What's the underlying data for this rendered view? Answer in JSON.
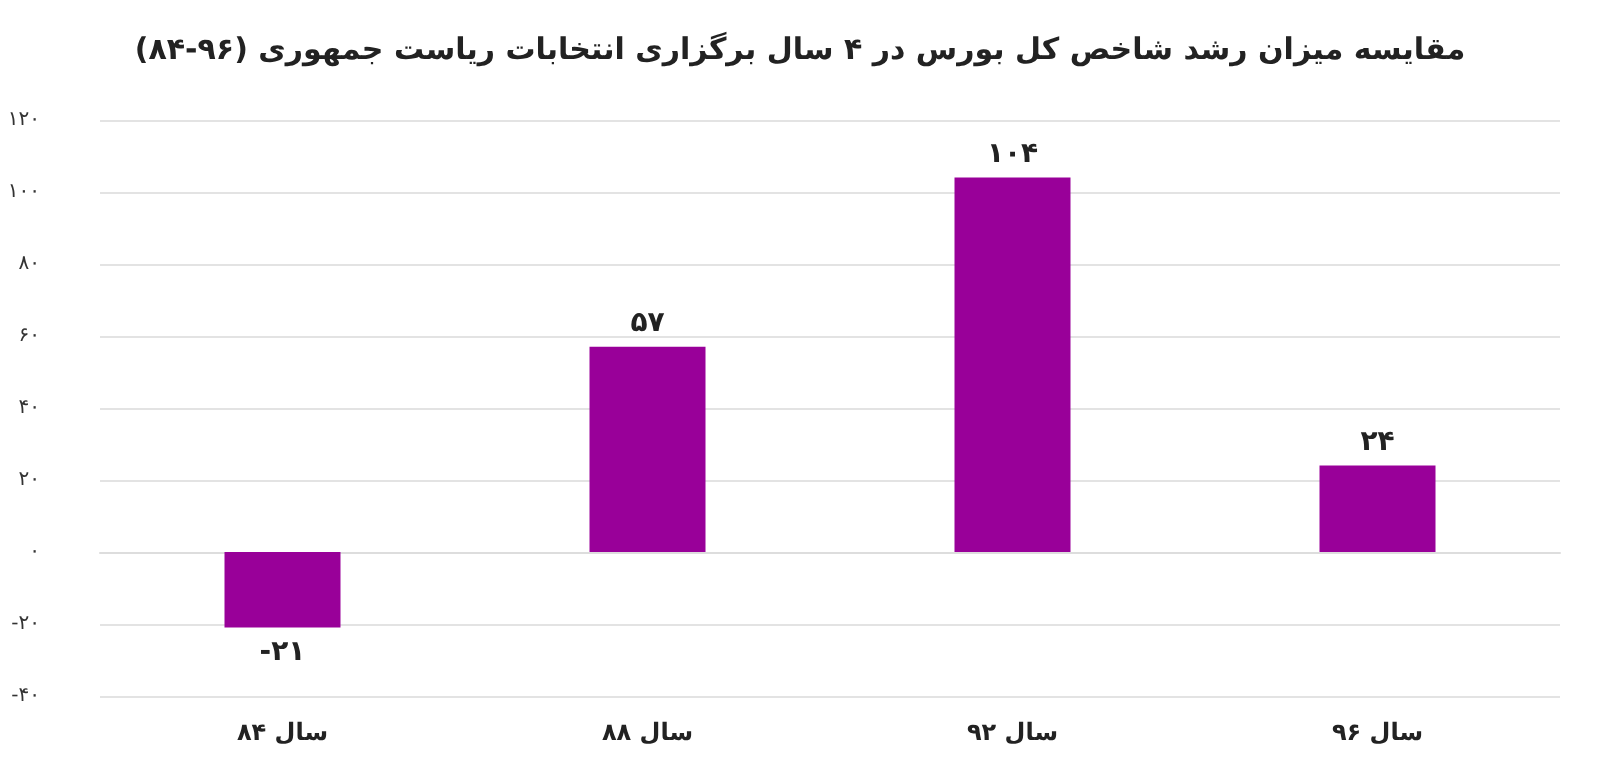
{
  "chart_data": {
    "type": "bar",
    "title": "مقایسه میزان رشد شاخص کل بورس در ۴ سال برگزاری انتخابات ریاست جمهوری (۹۶-۸۴)",
    "categories": [
      "سال ۸۴",
      "سال ۸۸",
      "سال ۹۲",
      "سال ۹۶"
    ],
    "values": [
      -21,
      57,
      104,
      24
    ],
    "color": "#990099",
    "value_labels": [
      "-۲۱",
      "۵۷",
      "۱۰۴",
      "۲۴"
    ],
    "ylim": [
      -40,
      120
    ],
    "yticks": [
      {
        "value": -40,
        "label": "-۴۰"
      },
      {
        "value": -20,
        "label": "-۲۰"
      },
      {
        "value": 0,
        "label": "۰"
      },
      {
        "value": 20,
        "label": "۲۰"
      },
      {
        "value": 40,
        "label": "۴۰"
      },
      {
        "value": 60,
        "label": "۶۰"
      },
      {
        "value": 80,
        "label": "۸۰"
      },
      {
        "value": 100,
        "label": "۱۰۰"
      },
      {
        "value": 120,
        "label": "۱۲۰"
      }
    ],
    "grid": true
  }
}
